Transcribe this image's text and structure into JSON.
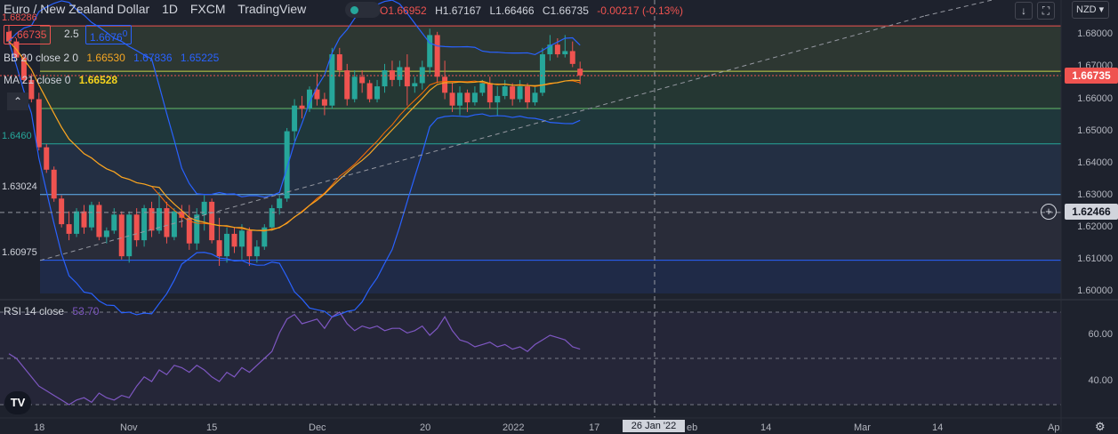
{
  "header": {
    "symbol": "Euro / New Zealand Dollar",
    "interval": "1D",
    "exchange": "FXCM",
    "platform": "TradingView",
    "open": "O1.66952",
    "high": "H1.67167",
    "low": "L1.66466",
    "close": "C1.66735",
    "change": "-0.00217 (-0.13%)"
  },
  "quote": {
    "bid": "1.66735",
    "spread": "2.5",
    "ask": "1.6676",
    "ask_suffix": "0"
  },
  "indicators": {
    "bb_label": "BB 20 close 2 0",
    "bb_basis": "1.66530",
    "bb_upper": "1.67836",
    "bb_lower": "1.65225",
    "ma_label": "MA 21 close 0",
    "ma_value": "1.66528",
    "rsi_label": "RSI 14 close",
    "rsi_value": "53.70"
  },
  "fib_levels_left": [
    "1.68286",
    "1.67?71",
    "1",
    "1.6460",
    "1.63024",
    "1.60975"
  ],
  "currency": "NZD",
  "current_price": "1.66735",
  "crosshair_price": "1.62466",
  "price_axis": [
    "1.68000",
    "1.67000",
    "1.66000",
    "1.65000",
    "1.64000",
    "1.63000",
    "1.62000",
    "1.61000",
    "1.60000"
  ],
  "rsi_axis": [
    "60.00",
    "40.00"
  ],
  "time_axis": [
    "18",
    "Nov",
    "15",
    "Dec",
    "20",
    "2022",
    "17",
    "26 Jan '22",
    "eb",
    "14",
    "Mar",
    "14",
    "Ap"
  ],
  "crosshair_date": "26 Jan '22",
  "colors": {
    "up": "#26a69a",
    "down": "#ef5350",
    "bb": "#2962ff",
    "ma": "#f5a623",
    "rsi": "#7e57c2"
  },
  "chart_data": {
    "type": "candlestick",
    "series": [
      {
        "name": "candles",
        "ohlc": [
          [
            1.681,
            1.683,
            1.677,
            1.678
          ],
          [
            1.678,
            1.679,
            1.672,
            1.673
          ],
          [
            1.673,
            1.674,
            1.665,
            1.666
          ],
          [
            1.666,
            1.668,
            1.659,
            1.66
          ],
          [
            1.66,
            1.662,
            1.644,
            1.645
          ],
          [
            1.645,
            1.646,
            1.637,
            1.638
          ],
          [
            1.638,
            1.639,
            1.628,
            1.629
          ],
          [
            1.629,
            1.63,
            1.62,
            1.621
          ],
          [
            1.621,
            1.625,
            1.616,
            1.618
          ],
          [
            1.618,
            1.626,
            1.617,
            1.625
          ],
          [
            1.625,
            1.627,
            1.618,
            1.62
          ],
          [
            1.62,
            1.628,
            1.619,
            1.627
          ],
          [
            1.627,
            1.628,
            1.616,
            1.617
          ],
          [
            1.617,
            1.62,
            1.615,
            1.619
          ],
          [
            1.619,
            1.626,
            1.618,
            1.624
          ],
          [
            1.624,
            1.625,
            1.61,
            1.611
          ],
          [
            1.611,
            1.625,
            1.609,
            1.624
          ],
          [
            1.624,
            1.626,
            1.614,
            1.616
          ],
          [
            1.616,
            1.627,
            1.614,
            1.626
          ],
          [
            1.626,
            1.628,
            1.617,
            1.619
          ],
          [
            1.619,
            1.631,
            1.618,
            1.626
          ],
          [
            1.626,
            1.628,
            1.615,
            1.617
          ],
          [
            1.617,
            1.626,
            1.616,
            1.625
          ],
          [
            1.625,
            1.627,
            1.62,
            1.623
          ],
          [
            1.623,
            1.627,
            1.613,
            1.615
          ],
          [
            1.615,
            1.626,
            1.613,
            1.624
          ],
          [
            1.624,
            1.63,
            1.619,
            1.628
          ],
          [
            1.628,
            1.629,
            1.615,
            1.616
          ],
          [
            1.616,
            1.623,
            1.608,
            1.611
          ],
          [
            1.611,
            1.62,
            1.609,
            1.618
          ],
          [
            1.618,
            1.62,
            1.612,
            1.614
          ],
          [
            1.614,
            1.621,
            1.61,
            1.619
          ],
          [
            1.619,
            1.62,
            1.608,
            1.611
          ],
          [
            1.611,
            1.616,
            1.609,
            1.614
          ],
          [
            1.614,
            1.621,
            1.613,
            1.62
          ],
          [
            1.62,
            1.627,
            1.619,
            1.626
          ],
          [
            1.626,
            1.63,
            1.624,
            1.629
          ],
          [
            1.629,
            1.651,
            1.628,
            1.65
          ],
          [
            1.65,
            1.66,
            1.647,
            1.658
          ],
          [
            1.658,
            1.661,
            1.654,
            1.657
          ],
          [
            1.657,
            1.664,
            1.656,
            1.663
          ],
          [
            1.663,
            1.668,
            1.658,
            1.66
          ],
          [
            1.66,
            1.662,
            1.655,
            1.658
          ],
          [
            1.658,
            1.676,
            1.657,
            1.674
          ],
          [
            1.674,
            1.676,
            1.667,
            1.669
          ],
          [
            1.669,
            1.671,
            1.658,
            1.66
          ],
          [
            1.66,
            1.669,
            1.659,
            1.667
          ],
          [
            1.667,
            1.669,
            1.662,
            1.665
          ],
          [
            1.665,
            1.666,
            1.659,
            1.66
          ],
          [
            1.66,
            1.666,
            1.659,
            1.664
          ],
          [
            1.664,
            1.671,
            1.662,
            1.669
          ],
          [
            1.669,
            1.672,
            1.664,
            1.666
          ],
          [
            1.666,
            1.672,
            1.664,
            1.67
          ],
          [
            1.67,
            1.674,
            1.658,
            1.664
          ],
          [
            1.664,
            1.667,
            1.662,
            1.665
          ],
          [
            1.665,
            1.672,
            1.663,
            1.67
          ],
          [
            1.67,
            1.682,
            1.668,
            1.68
          ],
          [
            1.68,
            1.681,
            1.665,
            1.667
          ],
          [
            1.667,
            1.672,
            1.66,
            1.662
          ],
          [
            1.662,
            1.665,
            1.656,
            1.658
          ],
          [
            1.658,
            1.664,
            1.655,
            1.662
          ],
          [
            1.662,
            1.663,
            1.656,
            1.659
          ],
          [
            1.659,
            1.664,
            1.658,
            1.662
          ],
          [
            1.662,
            1.666,
            1.661,
            1.665
          ],
          [
            1.665,
            1.667,
            1.657,
            1.659
          ],
          [
            1.659,
            1.664,
            1.655,
            1.661
          ],
          [
            1.661,
            1.666,
            1.66,
            1.664
          ],
          [
            1.664,
            1.665,
            1.658,
            1.66
          ],
          [
            1.66,
            1.666,
            1.659,
            1.664
          ],
          [
            1.664,
            1.665,
            1.657,
            1.659
          ],
          [
            1.659,
            1.664,
            1.658,
            1.662
          ],
          [
            1.662,
            1.676,
            1.661,
            1.674
          ],
          [
            1.674,
            1.68,
            1.672,
            1.677
          ],
          [
            1.677,
            1.679,
            1.673,
            1.674
          ],
          [
            1.674,
            1.68,
            1.673,
            1.675
          ],
          [
            1.675,
            1.678,
            1.67,
            1.671
          ],
          [
            1.6695,
            1.6717,
            1.6647,
            1.6674
          ]
        ]
      }
    ],
    "rsi": [
      52,
      50,
      46,
      42,
      38,
      36,
      34,
      32,
      30,
      32,
      33,
      31,
      35,
      33,
      32,
      34,
      33,
      38,
      42,
      40,
      45,
      43,
      47,
      46,
      44,
      47,
      45,
      42,
      40,
      44,
      42,
      46,
      44,
      47,
      50,
      53,
      61,
      67,
      69,
      65,
      66,
      67,
      63,
      68,
      70,
      65,
      62,
      64,
      63,
      64,
      62,
      63,
      63,
      61,
      62,
      64,
      60,
      63,
      68,
      62,
      58,
      57,
      55,
      56,
      57,
      55,
      56,
      54,
      55,
      53,
      56,
      58,
      60,
      59,
      58,
      55,
      54
    ],
    "fib_levels": [
      1.68286,
      1.66871,
      1.6571,
      1.64606,
      1.63024,
      1.60975
    ],
    "ylim": [
      1.598,
      1.684
    ],
    "rsi_ylim": [
      25,
      75
    ]
  }
}
